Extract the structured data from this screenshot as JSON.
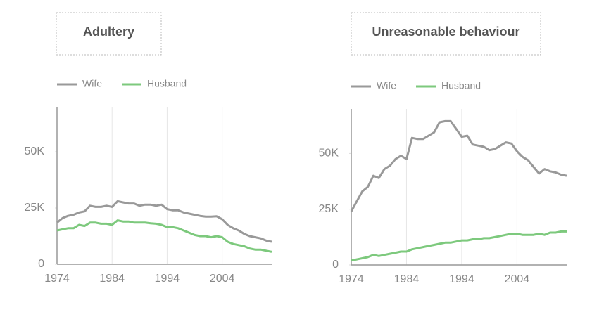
{
  "chart_data": [
    {
      "type": "line",
      "title": "Adultery",
      "grid": true,
      "x": [
        1974,
        1975,
        1976,
        1977,
        1978,
        1979,
        1980,
        1981,
        1982,
        1983,
        1984,
        1985,
        1986,
        1987,
        1988,
        1989,
        1990,
        1991,
        1992,
        1993,
        1994,
        1995,
        1996,
        1997,
        1998,
        1999,
        2000,
        2001,
        2002,
        2003,
        2004,
        2005,
        2006,
        2007,
        2008,
        2009,
        2010,
        2011,
        2012,
        2013
      ],
      "xlim": [
        1974,
        2013
      ],
      "xticks": [
        1974,
        1984,
        1994,
        2004
      ],
      "ylim": [
        0,
        70000
      ],
      "yticks": [
        0,
        {
          "value": 25000,
          "label": "25K"
        },
        {
          "value": 50000,
          "label": "50K"
        }
      ],
      "series": [
        {
          "name": "Wife",
          "color": "#999999",
          "values": [
            18500,
            20500,
            21500,
            22000,
            23000,
            23500,
            26000,
            25500,
            25500,
            26000,
            25500,
            28000,
            27500,
            27000,
            27000,
            26000,
            26500,
            26500,
            26000,
            26500,
            24500,
            24000,
            24000,
            23000,
            22500,
            22000,
            21500,
            21200,
            21200,
            21300,
            20000,
            17500,
            16000,
            15000,
            13500,
            12500,
            12000,
            11500,
            10500,
            10000
          ]
        },
        {
          "name": "Husband",
          "color": "#7dc97d",
          "values": [
            15000,
            15500,
            16000,
            16000,
            17500,
            17000,
            18500,
            18500,
            18000,
            18000,
            17500,
            19500,
            19000,
            19000,
            18500,
            18500,
            18500,
            18200,
            18000,
            17500,
            16500,
            16500,
            16000,
            15000,
            14000,
            13000,
            12500,
            12500,
            12000,
            12500,
            12000,
            10000,
            9000,
            8500,
            8000,
            7000,
            6500,
            6500,
            6000,
            5500
          ]
        }
      ]
    },
    {
      "type": "line",
      "title": "Unreasonable behaviour",
      "grid": true,
      "x": [
        1974,
        1975,
        1976,
        1977,
        1978,
        1979,
        1980,
        1981,
        1982,
        1983,
        1984,
        1985,
        1986,
        1987,
        1988,
        1989,
        1990,
        1991,
        1992,
        1993,
        1994,
        1995,
        1996,
        1997,
        1998,
        1999,
        2000,
        2001,
        2002,
        2003,
        2004,
        2005,
        2006,
        2007,
        2008,
        2009,
        2010,
        2011,
        2012,
        2013
      ],
      "xlim": [
        1974,
        2013
      ],
      "xticks": [
        1974,
        1984,
        1994,
        2004
      ],
      "ylim": [
        0,
        70000
      ],
      "yticks": [
        0,
        {
          "value": 25000,
          "label": "25K"
        },
        {
          "value": 50000,
          "label": "50K"
        }
      ],
      "series": [
        {
          "name": "Wife",
          "color": "#999999",
          "values": [
            24000,
            28500,
            33000,
            35000,
            40000,
            39000,
            43000,
            44500,
            47500,
            49000,
            47500,
            57000,
            56500,
            56500,
            58000,
            59500,
            64000,
            64500,
            64500,
            61000,
            57500,
            58000,
            54000,
            53500,
            53000,
            51500,
            52000,
            53500,
            55000,
            54500,
            51000,
            48500,
            47000,
            44000,
            41000,
            43000,
            42000,
            41500,
            40500,
            40000
          ]
        },
        {
          "name": "Husband",
          "color": "#7dc97d",
          "values": [
            2000,
            2500,
            3000,
            3500,
            4500,
            4000,
            4500,
            5000,
            5500,
            6000,
            6000,
            7000,
            7500,
            8000,
            8500,
            9000,
            9500,
            10000,
            10000,
            10500,
            11000,
            11000,
            11500,
            11500,
            12000,
            12000,
            12500,
            13000,
            13500,
            14000,
            14000,
            13500,
            13500,
            13500,
            14000,
            13500,
            14500,
            14500,
            15000,
            15000
          ]
        }
      ]
    }
  ]
}
